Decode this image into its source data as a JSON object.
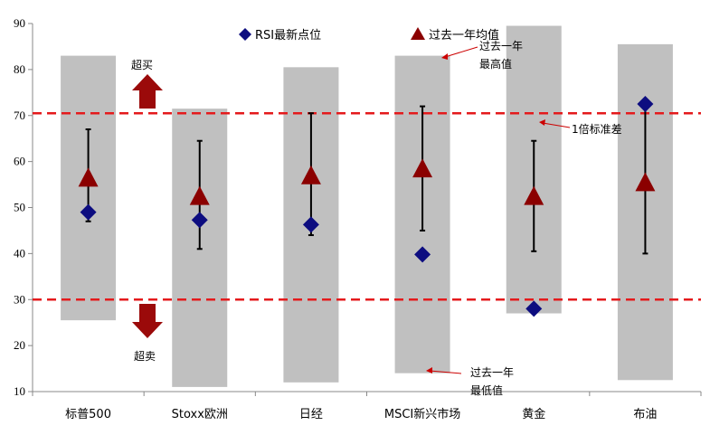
{
  "chart_data": {
    "type": "range-error-point",
    "ylim": [
      10,
      90
    ],
    "yticks": [
      10,
      20,
      30,
      40,
      50,
      60,
      70,
      80,
      90
    ],
    "categories": [
      "标普500",
      "Stoxx欧洲",
      "日经",
      "MSCI新兴市场",
      "黄金",
      "布油"
    ],
    "range_min": [
      25.5,
      11,
      12,
      14,
      27,
      12.5
    ],
    "range_max": [
      83,
      71.5,
      80.5,
      83,
      89.5,
      85.5
    ],
    "mean_1y": [
      56.5,
      52.5,
      57,
      58.5,
      52.5,
      55.5
    ],
    "sd_low": [
      47,
      41,
      44,
      45,
      40.5,
      40
    ],
    "sd_high": [
      67,
      64.5,
      70.5,
      72,
      64.5,
      72
    ],
    "rsi_latest": [
      49,
      47.3,
      46.3,
      39.8,
      28,
      72.5
    ],
    "overbought_line": 70.5,
    "oversold_line": 30,
    "legend": {
      "rsi_label": "RSI最新点位",
      "mean_label": "过去一年均值"
    },
    "annotations": {
      "overbought": "超买",
      "oversold": "超卖",
      "max_line1": "过去一年",
      "max_line2": "最高值",
      "min_line1": "过去一年",
      "min_line2": "最低值",
      "sd": "1倍标准差"
    },
    "colors": {
      "range_bar": "#c0c0c0",
      "rsi_marker": "#0d0d80",
      "mean_marker": "#8b0000",
      "threshold_line": "#e41a1c",
      "arrow": "#9b0a0a",
      "error_bar": "#000000"
    }
  }
}
